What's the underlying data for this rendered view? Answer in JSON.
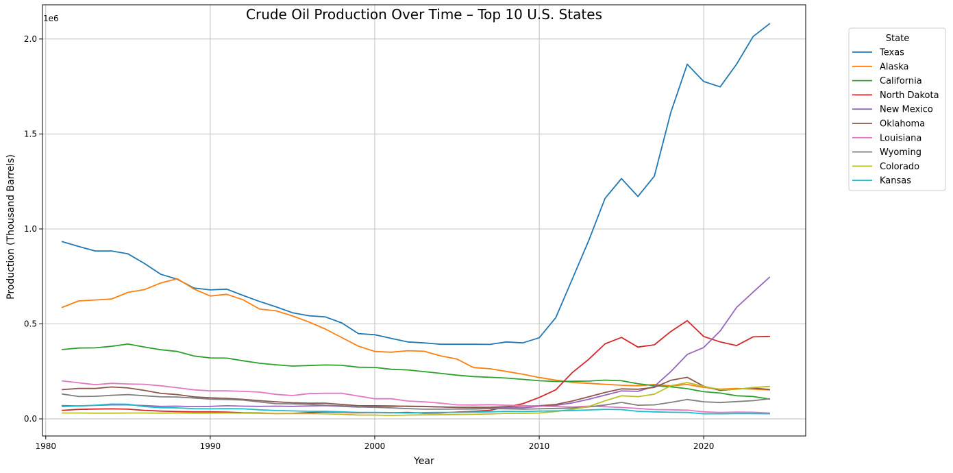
{
  "chart_data": {
    "type": "line",
    "title": "Crude Oil Production Over Time – Top 10 U.S. States",
    "xlabel": "Year",
    "ylabel": "Production (Thousand Barrels)",
    "y_offset_label": "1e6",
    "xlim": [
      1979.8,
      2026.2
    ],
    "ylim": [
      -90000,
      2180000
    ],
    "x_ticks": [
      1980,
      1990,
      2000,
      2010,
      2020
    ],
    "x_tick_labels": [
      "1980",
      "1990",
      "2000",
      "2010",
      "2020"
    ],
    "y_ticks": [
      0,
      500000,
      1000000,
      1500000,
      2000000
    ],
    "y_tick_labels": [
      "0.0",
      "0.5",
      "1.0",
      "1.5",
      "2.0"
    ],
    "grid": true,
    "legend": {
      "title": "State",
      "placement": "outside-top-right"
    },
    "x": [
      1981,
      1982,
      1983,
      1984,
      1985,
      1986,
      1987,
      1988,
      1989,
      1990,
      1991,
      1992,
      1993,
      1994,
      1995,
      1996,
      1997,
      1998,
      1999,
      2000,
      2001,
      2002,
      2003,
      2004,
      2005,
      2006,
      2007,
      2008,
      2009,
      2010,
      2011,
      2012,
      2013,
      2014,
      2015,
      2016,
      2017,
      2018,
      2019,
      2020,
      2021,
      2022,
      2023,
      2024
    ],
    "series": [
      {
        "name": "Texas",
        "color": "#1f77b4",
        "values": [
          933000,
          908000,
          884000,
          884000,
          869000,
          818000,
          761000,
          735000,
          689000,
          679000,
          683000,
          650000,
          618000,
          590000,
          559000,
          543000,
          537000,
          505000,
          449000,
          443000,
          424000,
          405000,
          400000,
          393000,
          393000,
          393000,
          392000,
          405000,
          400000,
          427000,
          532000,
          734000,
          937000,
          1161000,
          1265000,
          1171000,
          1278000,
          1613000,
          1867000,
          1776000,
          1748000,
          1868000,
          2013000,
          2080000
        ]
      },
      {
        "name": "Alaska",
        "color": "#ff7f0e",
        "values": [
          587000,
          621000,
          626000,
          631000,
          666000,
          681000,
          716000,
          738000,
          684000,
          647000,
          656000,
          627000,
          578000,
          569000,
          542000,
          510000,
          473000,
          428000,
          383000,
          355000,
          351000,
          359000,
          356000,
          332000,
          315000,
          270000,
          264000,
          250000,
          235000,
          218000,
          204000,
          192000,
          187000,
          182000,
          177000,
          174000,
          181000,
          174000,
          181000,
          166000,
          157000,
          160000,
          157000,
          152000
        ]
      },
      {
        "name": "California",
        "color": "#2ca02c",
        "values": [
          365000,
          373000,
          374000,
          382000,
          394000,
          378000,
          364000,
          355000,
          331000,
          321000,
          320000,
          306000,
          293000,
          285000,
          278000,
          281000,
          284000,
          282000,
          272000,
          271000,
          261000,
          258000,
          249000,
          240000,
          230000,
          223000,
          219000,
          215000,
          208000,
          201000,
          197000,
          198000,
          199000,
          204000,
          201000,
          185000,
          175000,
          169000,
          159000,
          143000,
          136000,
          122000,
          118000,
          104000
        ]
      },
      {
        "name": "North Dakota",
        "color": "#d62728",
        "values": [
          45000,
          50000,
          52000,
          53000,
          51000,
          45000,
          41000,
          39000,
          37000,
          37000,
          36000,
          32000,
          31000,
          28000,
          29000,
          33000,
          37000,
          35000,
          32000,
          33000,
          32000,
          34000,
          30000,
          31000,
          36000,
          40000,
          45000,
          63000,
          80000,
          113000,
          153000,
          243000,
          313000,
          395000,
          429000,
          378000,
          390000,
          460000,
          517000,
          434000,
          405000,
          386000,
          432000,
          434000
        ]
      },
      {
        "name": "New Mexico",
        "color": "#9467bd",
        "values": [
          70000,
          68000,
          71000,
          74000,
          74000,
          70000,
          66000,
          67000,
          65000,
          66000,
          69000,
          67000,
          66000,
          67000,
          66000,
          68000,
          70000,
          66000,
          62000,
          67000,
          66000,
          67000,
          66000,
          63000,
          60000,
          59000,
          59000,
          59000,
          58000,
          66000,
          71000,
          84000,
          103000,
          125000,
          147000,
          145000,
          171000,
          249000,
          339000,
          376000,
          463000,
          587000,
          667000,
          746000
        ]
      },
      {
        "name": "Oklahoma",
        "color": "#8c564b",
        "values": [
          154000,
          160000,
          160000,
          168000,
          163000,
          150000,
          134000,
          128000,
          116000,
          111000,
          108000,
          103000,
          96000,
          90000,
          85000,
          83000,
          83000,
          76000,
          69000,
          69000,
          68000,
          66000,
          65000,
          63000,
          61000,
          61000,
          61000,
          65000,
          67000,
          69000,
          76000,
          94000,
          116000,
          139000,
          158000,
          156000,
          166000,
          203000,
          219000,
          172000,
          150000,
          157000,
          162000,
          155000
        ]
      },
      {
        "name": "Louisiana",
        "color": "#e377c2",
        "values": [
          200000,
          190000,
          180000,
          187000,
          184000,
          182000,
          174000,
          164000,
          153000,
          148000,
          148000,
          145000,
          141000,
          129000,
          123000,
          133000,
          135000,
          135000,
          120000,
          106000,
          106000,
          94000,
          90000,
          83000,
          74000,
          73000,
          75000,
          72000,
          70000,
          67000,
          65000,
          63000,
          67000,
          64000,
          60000,
          55000,
          49000,
          48000,
          46000,
          37000,
          34000,
          36000,
          35000,
          31000
        ]
      },
      {
        "name": "Wyoming",
        "color": "#7f7f7f",
        "values": [
          131000,
          118000,
          119000,
          124000,
          128000,
          122000,
          116000,
          115000,
          110000,
          104000,
          102000,
          99000,
          89000,
          80000,
          79000,
          77000,
          72000,
          69000,
          63000,
          61000,
          58000,
          54000,
          51000,
          51000,
          52000,
          52000,
          54000,
          53000,
          51000,
          53000,
          55000,
          57000,
          63000,
          73000,
          87000,
          72000,
          74000,
          87000,
          102000,
          90000,
          86000,
          91000,
          96000,
          106000
        ]
      },
      {
        "name": "Colorado",
        "color": "#bcbd22",
        "values": [
          31000,
          31000,
          30000,
          30000,
          31000,
          31000,
          30000,
          31000,
          30000,
          30000,
          31000,
          30000,
          29000,
          28000,
          28000,
          28000,
          27000,
          24000,
          20000,
          20000,
          18000,
          20000,
          21000,
          22000,
          23000,
          24000,
          26000,
          29000,
          29000,
          31000,
          39000,
          50000,
          65000,
          95000,
          122000,
          117000,
          130000,
          174000,
          191000,
          171000,
          155000,
          156000,
          165000,
          171000
        ]
      },
      {
        "name": "Kansas",
        "color": "#17becf",
        "values": [
          65000,
          68000,
          72000,
          78000,
          77000,
          65000,
          59000,
          58000,
          54000,
          53000,
          54000,
          53000,
          48000,
          44000,
          42000,
          40000,
          40000,
          37000,
          34000,
          34000,
          33000,
          31000,
          33000,
          34000,
          34000,
          36000,
          37000,
          40000,
          39000,
          41000,
          42000,
          44000,
          47000,
          50000,
          49000,
          40000,
          37000,
          35000,
          34000,
          27000,
          27000,
          28000,
          28000,
          27000
        ]
      }
    ]
  }
}
